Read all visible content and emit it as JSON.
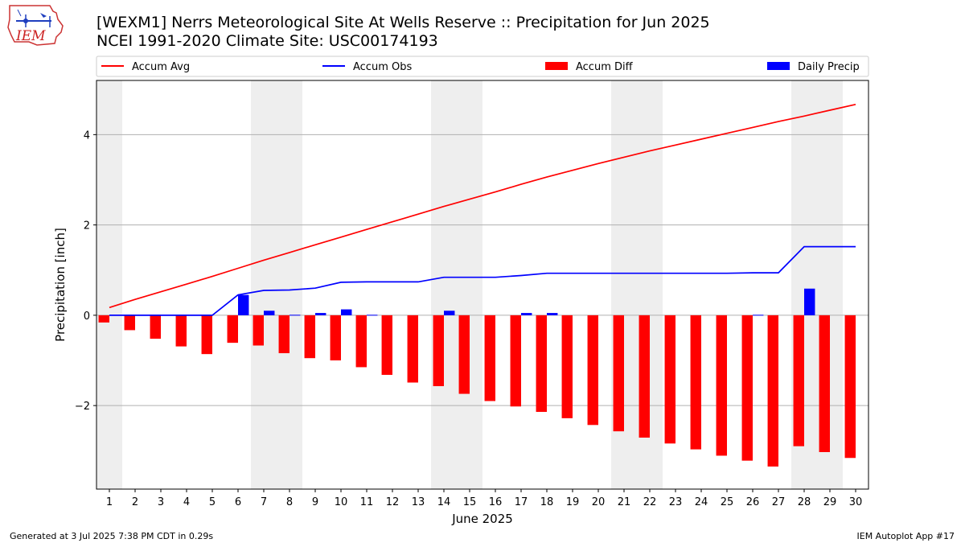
{
  "header": {
    "title_line1": "[WEXM1] Nerrs Meteorological Site At Wells Reserve :: Precipitation for Jun 2025",
    "title_line2": "NCEI 1991-2020 Climate Site: USC00174193"
  },
  "logo": {
    "text": "IEM"
  },
  "footer": {
    "generated": "Generated at 3 Jul 2025 7:38 PM CDT in 0.29s",
    "app": "IEM Autoplot App #17"
  },
  "colors": {
    "accum_avg": "#ff0000",
    "accum_obs": "#0000ff",
    "accum_diff": "#ff0000",
    "daily_precip": "#0000ff",
    "weekend_shade": "#eeeeee",
    "grid": "#b0b0b0"
  },
  "chart_data": {
    "type": "bar",
    "title": "[WEXM1] Nerrs Meteorological Site At Wells Reserve :: Precipitation for Jun 2025",
    "subtitle": "NCEI 1991-2020 Climate Site: USC00174193",
    "xlabel": "June 2025",
    "ylabel": "Precipitation [inch]",
    "ylim": [
      -3.85,
      5.2
    ],
    "yticks": [
      -2,
      0,
      2,
      4
    ],
    "ytick_labels": [
      "−2",
      "0",
      "2",
      "4"
    ],
    "xlim": [
      0.5,
      30.5
    ],
    "grid": "horizontal",
    "legend_position": "top",
    "days": [
      1,
      2,
      3,
      4,
      5,
      6,
      7,
      8,
      9,
      10,
      11,
      12,
      13,
      14,
      15,
      16,
      17,
      18,
      19,
      20,
      21,
      22,
      23,
      24,
      25,
      26,
      27,
      28,
      29,
      30
    ],
    "day_labels": [
      "1",
      "2",
      "3",
      "4",
      "5",
      "6",
      "7",
      "8",
      "9",
      "10",
      "11",
      "12",
      "13",
      "14",
      "15",
      "16",
      "17",
      "18",
      "19",
      "20",
      "21",
      "22",
      "23",
      "24",
      "25",
      "26",
      "27",
      "28",
      "29",
      "30"
    ],
    "weekend_days": [
      1,
      7,
      8,
      14,
      15,
      21,
      22,
      28,
      29
    ],
    "series": [
      {
        "name": "Accum Avg",
        "kind": "line",
        "values": [
          0.17,
          0.35,
          0.52,
          0.69,
          0.86,
          1.04,
          1.22,
          1.39,
          1.56,
          1.73,
          1.9,
          2.07,
          2.24,
          2.41,
          2.57,
          2.73,
          2.9,
          3.06,
          3.21,
          3.36,
          3.5,
          3.64,
          3.77,
          3.9,
          4.03,
          4.16,
          4.29,
          4.41,
          4.54,
          4.67
        ]
      },
      {
        "name": "Accum Obs",
        "kind": "line",
        "values": [
          0.0,
          0.0,
          0.0,
          0.0,
          0.0,
          0.45,
          0.55,
          0.56,
          0.6,
          0.73,
          0.74,
          0.74,
          0.74,
          0.84,
          0.84,
          0.84,
          0.88,
          0.93,
          0.93,
          0.93,
          0.93,
          0.93,
          0.93,
          0.93,
          0.93,
          0.94,
          0.94,
          1.52,
          1.52,
          1.52
        ]
      },
      {
        "name": "Accum Diff",
        "kind": "bar",
        "values": [
          -0.16,
          -0.33,
          -0.52,
          -0.69,
          -0.86,
          -0.61,
          -0.67,
          -0.84,
          -0.95,
          -1.0,
          -1.15,
          -1.32,
          -1.49,
          -1.57,
          -1.74,
          -1.9,
          -2.02,
          -2.14,
          -2.28,
          -2.43,
          -2.57,
          -2.71,
          -2.84,
          -2.97,
          -3.11,
          -3.22,
          -3.35,
          -2.9,
          -3.03,
          -3.16
        ]
      },
      {
        "name": "Daily Precip",
        "kind": "bar",
        "values": [
          0.0,
          0.0,
          0.0,
          0.0,
          0.0,
          0.45,
          0.1,
          0.01,
          0.05,
          0.13,
          0.01,
          0.0,
          0.0,
          0.1,
          0.0,
          0.0,
          0.05,
          0.05,
          0.0,
          0.0,
          0.0,
          0.0,
          0.0,
          0.0,
          0.0,
          0.01,
          0.0,
          0.59,
          0.0,
          0.0
        ]
      }
    ]
  }
}
